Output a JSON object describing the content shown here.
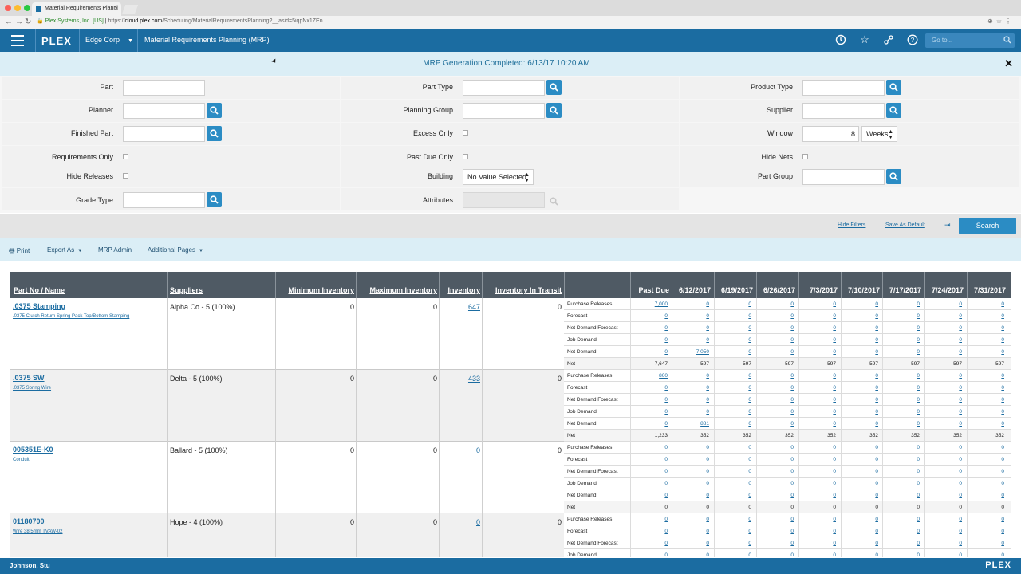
{
  "browser": {
    "tab_title": "Material Requirements Planni",
    "tab_close": "×",
    "url_secure_label": "Plex Systems, Inc. [US]",
    "url_scheme": "https://",
    "url_host": "cloud.plex.com",
    "url_path": "/Scheduling/MaterialRequirementsPlanning?__asid=5iqpNx1ZEn"
  },
  "header": {
    "logo": "PLEX",
    "company": "Edge Corp",
    "title": "Material Requirements Planning (MRP)",
    "goto_placeholder": "Go to..."
  },
  "notice": {
    "message": "MRP Generation Completed: 6/13/17 10:20 AM",
    "close": "✕"
  },
  "filters": {
    "part": "Part",
    "part_type": "Part Type",
    "product_type": "Product Type",
    "planner": "Planner",
    "planning_group": "Planning Group",
    "supplier": "Supplier",
    "finished_part": "Finished Part",
    "excess_only": "Excess Only",
    "window": "Window",
    "window_value": "8",
    "window_unit": "Weeks",
    "requirements_only": "Requirements Only",
    "past_due_only": "Past Due Only",
    "hide_nets": "Hide Nets",
    "hide_releases": "Hide Releases",
    "building": "Building",
    "building_value": "No Value Selected",
    "part_group": "Part Group",
    "grade_type": "Grade Type",
    "attributes": "Attributes"
  },
  "actions": {
    "hide_filters": "Hide Filters",
    "save_default": "Save As Default",
    "search": "Search"
  },
  "toolbar": {
    "print": "Print",
    "export_as": "Export As",
    "mrp_admin": "MRP Admin",
    "additional_pages": "Additional Pages"
  },
  "grid": {
    "headers": {
      "part_no": "Part No / Name",
      "suppliers": "Suppliers",
      "min_inv": "Minimum Inventory",
      "max_inv": "Maximum Inventory",
      "inventory": "Inventory",
      "in_transit": "Inventory In Transit",
      "past_due": "Past Due"
    },
    "dates": [
      "6/12/2017",
      "6/19/2017",
      "6/26/2017",
      "7/3/2017",
      "7/10/2017",
      "7/17/2017",
      "7/24/2017",
      "7/31/2017"
    ],
    "parts": [
      {
        "no": ".0375 Stamping",
        "name": ".0375 Clutch Return Spring Pack Top/Bottom Stamping",
        "supplier": "Alpha Co - 5 (100%)",
        "min": "0",
        "max": "0",
        "inventory": "647",
        "transit": "0",
        "rows": [
          {
            "label": "Purchase Releases",
            "vals": [
              "7,000",
              "0",
              "0",
              "0",
              "0",
              "0",
              "0",
              "0",
              "0"
            ]
          },
          {
            "label": "Forecast",
            "vals": [
              "0",
              "0",
              "0",
              "0",
              "0",
              "0",
              "0",
              "0",
              "0"
            ]
          },
          {
            "label": "Net Demand Forecast",
            "vals": [
              "0",
              "0",
              "0",
              "0",
              "0",
              "0",
              "0",
              "0",
              "0"
            ]
          },
          {
            "label": "Job Demand",
            "vals": [
              "0",
              "0",
              "0",
              "0",
              "0",
              "0",
              "0",
              "0",
              "0"
            ]
          },
          {
            "label": "Net Demand",
            "vals": [
              "0",
              "7,050",
              "0",
              "0",
              "0",
              "0",
              "0",
              "0",
              "0"
            ]
          },
          {
            "label": "Net",
            "vals": [
              "7,647",
              "597",
              "597",
              "597",
              "597",
              "597",
              "597",
              "597",
              "597"
            ]
          }
        ]
      },
      {
        "no": ".0375 SW",
        "name": ".0375 Spring Wire",
        "supplier": "Delta - 5 (100%)",
        "min": "0",
        "max": "0",
        "inventory": "433",
        "transit": "0",
        "rows": [
          {
            "label": "Purchase Releases",
            "vals": [
              "800",
              "0",
              "0",
              "0",
              "0",
              "0",
              "0",
              "0",
              "0"
            ]
          },
          {
            "label": "Forecast",
            "vals": [
              "0",
              "0",
              "0",
              "0",
              "0",
              "0",
              "0",
              "0",
              "0"
            ]
          },
          {
            "label": "Net Demand Forecast",
            "vals": [
              "0",
              "0",
              "0",
              "0",
              "0",
              "0",
              "0",
              "0",
              "0"
            ]
          },
          {
            "label": "Job Demand",
            "vals": [
              "0",
              "0",
              "0",
              "0",
              "0",
              "0",
              "0",
              "0",
              "0"
            ]
          },
          {
            "label": "Net Demand",
            "vals": [
              "0",
              "881",
              "0",
              "0",
              "0",
              "0",
              "0",
              "0",
              "0"
            ]
          },
          {
            "label": "Net",
            "vals": [
              "1,233",
              "352",
              "352",
              "352",
              "352",
              "352",
              "352",
              "352",
              "352"
            ]
          }
        ]
      },
      {
        "no": "005351E-K0",
        "name": "Conduit",
        "supplier": "Ballard - 5 (100%)",
        "min": "0",
        "max": "0",
        "inventory": "0",
        "transit": "0",
        "rows": [
          {
            "label": "Purchase Releases",
            "vals": [
              "0",
              "0",
              "0",
              "0",
              "0",
              "0",
              "0",
              "0",
              "0"
            ]
          },
          {
            "label": "Forecast",
            "vals": [
              "0",
              "0",
              "0",
              "0",
              "0",
              "0",
              "0",
              "0",
              "0"
            ]
          },
          {
            "label": "Net Demand Forecast",
            "vals": [
              "0",
              "0",
              "0",
              "0",
              "0",
              "0",
              "0",
              "0",
              "0"
            ]
          },
          {
            "label": "Job Demand",
            "vals": [
              "0",
              "0",
              "0",
              "0",
              "0",
              "0",
              "0",
              "0",
              "0"
            ]
          },
          {
            "label": "Net Demand",
            "vals": [
              "0",
              "0",
              "0",
              "0",
              "0",
              "0",
              "0",
              "0",
              "0"
            ]
          },
          {
            "label": "Net",
            "vals": [
              "0",
              "0",
              "0",
              "0",
              "0",
              "0",
              "0",
              "0",
              "0"
            ]
          }
        ]
      },
      {
        "no": "01180700",
        "name": "Wire 38.5mm TVAW-02",
        "supplier": "Hope - 4 (100%)",
        "min": "0",
        "max": "0",
        "inventory": "0",
        "transit": "0",
        "rows": [
          {
            "label": "Purchase Releases",
            "vals": [
              "0",
              "0",
              "0",
              "0",
              "0",
              "0",
              "0",
              "0",
              "0"
            ]
          },
          {
            "label": "Forecast",
            "vals": [
              "0",
              "0",
              "0",
              "0",
              "0",
              "0",
              "0",
              "0",
              "0"
            ]
          },
          {
            "label": "Net Demand Forecast",
            "vals": [
              "0",
              "0",
              "0",
              "0",
              "0",
              "0",
              "0",
              "0",
              "0"
            ]
          },
          {
            "label": "Job Demand",
            "vals": [
              "0",
              "0",
              "0",
              "0",
              "0",
              "0",
              "0",
              "0",
              "0"
            ]
          }
        ]
      }
    ]
  },
  "footer": {
    "user": "Johnson, Stu",
    "logo": "PLEX"
  },
  "colors": {
    "brand_blue": "#1b6ca1",
    "button_blue": "#2b8cc4",
    "header_dark": "#4f5a64",
    "notice_bg": "#dbeef6"
  }
}
